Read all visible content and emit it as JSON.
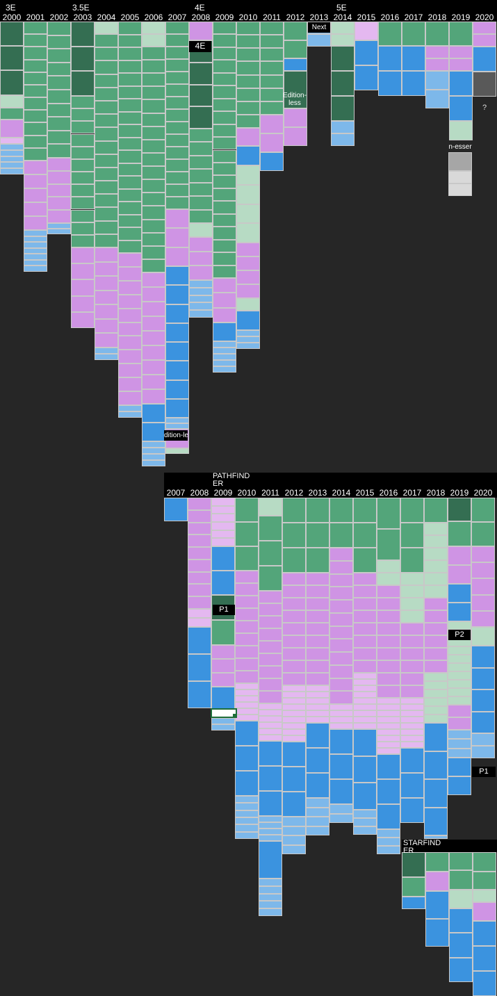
{
  "colors": {
    "dark_green": "#346e52",
    "green": "#53a57a",
    "light_green": "#b7dbc4",
    "purple": "#cf94e4",
    "light_purple": "#e4b8f0",
    "blue": "#3b93df",
    "light_blue": "#7db8ea",
    "gray": "#a6a6a6",
    "light_gray": "#d9d9d9",
    "dark_gray": "#595959",
    "black": "#000000",
    "background": "#262626"
  },
  "chart_data": [
    {
      "type": "table",
      "editions": [
        "3E",
        "3.5E",
        "4E",
        "5E"
      ],
      "years": [
        "2000",
        "2001",
        "2002",
        "2003",
        "2004",
        "2005",
        "2006",
        "2007",
        "2008",
        "2009",
        "2010",
        "2011",
        "2012",
        "2013",
        "2014",
        "2015",
        "2016",
        "2017",
        "2018",
        "2019",
        "2020"
      ],
      "labels": [
        "4E",
        "Edition-\nless",
        "Next",
        "dition-le",
        "n-esser",
        "?"
      ]
    },
    {
      "type": "table",
      "title": "PATHFIND\nER",
      "years": [
        "2007",
        "2008",
        "2009",
        "2010",
        "2011",
        "2012",
        "2013",
        "2014",
        "2015",
        "2016",
        "2017",
        "2018",
        "2019",
        "2020"
      ],
      "labels": [
        "P1",
        "P2",
        "P1"
      ],
      "subtitle": "STARFIND\nER"
    }
  ]
}
